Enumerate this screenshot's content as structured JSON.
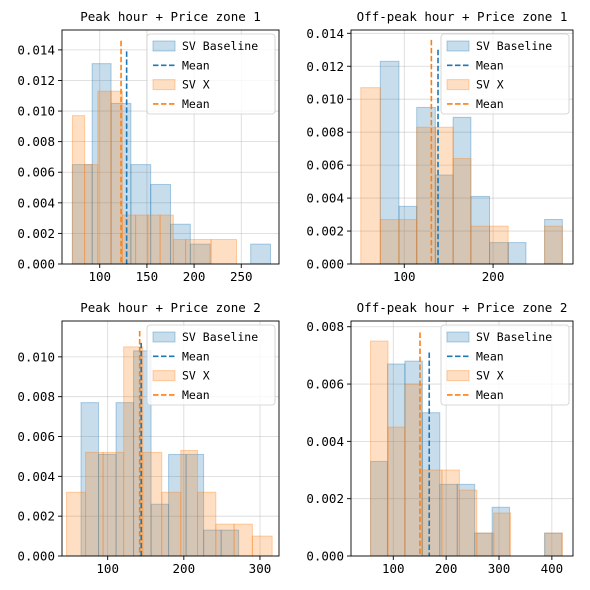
{
  "colors": {
    "baseline": "#1f77b4",
    "x": "#ff7f0e",
    "baseline_fill": "#1f77b4",
    "x_fill": "#ff7f0e"
  },
  "legend_labels": [
    "SV Baseline",
    "Mean",
    "SV X",
    "Mean"
  ],
  "chart_data": [
    {
      "type": "histogram",
      "title": "Peak hour + Price zone 1",
      "xlim": [
        60,
        290
      ],
      "ylim": [
        0,
        0.0153
      ],
      "xticks": [
        100,
        150,
        200,
        250
      ],
      "yticks": [
        0,
        0.002,
        0.004,
        0.006,
        0.008,
        0.01,
        0.012,
        0.014
      ],
      "ytick_labels": [
        "0.000",
        "0.002",
        "0.004",
        "0.006",
        "0.008",
        "0.010",
        "0.012",
        "0.014"
      ],
      "grid": true,
      "legend_position": "top-right",
      "series": [
        {
          "name": "SV Baseline",
          "bin_edges": [
            71,
            92,
            112,
            133,
            154,
            175,
            196,
            217,
            238,
            260,
            281
          ],
          "values": [
            0.0065,
            0.0131,
            0.0105,
            0.0065,
            0.0052,
            0.0026,
            0.0013,
            0,
            0,
            0.0013
          ]
        },
        {
          "name": "SV X",
          "bin_edges": [
            71,
            84,
            98,
            112,
            124,
            138,
            151,
            164,
            178,
            191,
            218,
            245
          ],
          "values": [
            0.0097,
            0.0065,
            0.0113,
            0.0113,
            0.0032,
            0.0032,
            0.0032,
            0.0032,
            0.0016,
            0.0016,
            0.0016
          ]
        }
      ],
      "means": {
        "SV Baseline": 128.5,
        "SV X": 122.6
      },
      "mean_line_tops": {
        "SV Baseline": 0.0139,
        "SV X": 0.0146
      }
    },
    {
      "type": "histogram",
      "title": "Off-peak hour + Price zone 1",
      "xlim": [
        40,
        290
      ],
      "ylim": [
        0,
        0.0142
      ],
      "xticks": [
        100,
        200
      ],
      "yticks": [
        0,
        0.002,
        0.004,
        0.006,
        0.008,
        0.01,
        0.012,
        0.014
      ],
      "ytick_labels": [
        "0.000",
        "0.002",
        "0.004",
        "0.006",
        "0.008",
        "0.010",
        "0.012",
        "0.014"
      ],
      "grid": true,
      "legend_position": "top-right",
      "series": [
        {
          "name": "SV Baseline",
          "bin_edges": [
            73,
            94,
            114,
            135,
            155,
            175,
            196,
            217,
            237,
            258,
            278
          ],
          "values": [
            0.0123,
            0.0035,
            0.0095,
            0.0054,
            0.0089,
            0.0041,
            0.0013,
            0.0013,
            0,
            0.0027
          ]
        },
        {
          "name": "SV X",
          "bin_edges": [
            51,
            73,
            94,
            114,
            135,
            155,
            175,
            196,
            217,
            237,
            258,
            278
          ],
          "values": [
            0.0107,
            0.0027,
            0.0027,
            0.0083,
            0.0083,
            0.0064,
            0.0023,
            0.0023,
            0,
            0,
            0.0023
          ]
        }
      ],
      "means": {
        "SV Baseline": 138.0,
        "SV X": 130.5
      },
      "mean_line_tops": {
        "SV Baseline": 0.013,
        "SV X": 0.0136
      }
    },
    {
      "type": "histogram",
      "title": "Peak hour + Price zone 2",
      "xlim": [
        40,
        325
      ],
      "ylim": [
        0,
        0.0118
      ],
      "xticks": [
        100,
        200,
        300
      ],
      "yticks": [
        0,
        0.002,
        0.004,
        0.006,
        0.008,
        0.01
      ],
      "ytick_labels": [
        "0.000",
        "0.002",
        "0.004",
        "0.006",
        "0.008",
        "0.010"
      ],
      "grid": true,
      "legend_position": "top-right",
      "series": [
        {
          "name": "SV Baseline",
          "bin_edges": [
            65,
            88,
            111,
            134,
            157,
            180,
            203,
            226,
            249,
            272
          ],
          "values": [
            0.0077,
            0.0051,
            0.0077,
            0.0103,
            0.0026,
            0.0051,
            0.0051,
            0.0013,
            0.0013
          ]
        },
        {
          "name": "SV X",
          "bin_edges": [
            46,
            71,
            94,
            121,
            146,
            171,
            196,
            218,
            242,
            266,
            290,
            316
          ],
          "values": [
            0.0032,
            0.0052,
            0.0052,
            0.0105,
            0.0052,
            0.0032,
            0.0053,
            0.0032,
            0.0016,
            0.0016,
            0.001
          ]
        }
      ],
      "means": {
        "SV Baseline": 144.0,
        "SV X": 142.0
      },
      "mean_line_tops": {
        "SV Baseline": 0.0107,
        "SV X": 0.0113
      }
    },
    {
      "type": "histogram",
      "title": "Off-peak hour + Price zone 2",
      "xlim": [
        20,
        440
      ],
      "ylim": [
        0,
        0.0082
      ],
      "xticks": [
        100,
        200,
        300,
        400
      ],
      "yticks": [
        0,
        0.002,
        0.004,
        0.006,
        0.008
      ],
      "ytick_labels": [
        "0.000",
        "0.002",
        "0.004",
        "0.006",
        "0.008"
      ],
      "grid": true,
      "legend_position": "top-right",
      "series": [
        {
          "name": "SV Baseline",
          "bin_edges": [
            57,
            89,
            122,
            155,
            188,
            221,
            254,
            287,
            320,
            353,
            386,
            419
          ],
          "values": [
            0.0033,
            0.0067,
            0.0068,
            0.005,
            0.0025,
            0.0025,
            0.0008,
            0.0017,
            0,
            0,
            0.0008
          ]
        },
        {
          "name": "SV X",
          "bin_edges": [
            57,
            90,
            122,
            154,
            192,
            225,
            258,
            290,
            322,
            355,
            387,
            420
          ],
          "values": [
            0.0075,
            0.0045,
            0.006,
            0.003,
            0.003,
            0.0023,
            0.0008,
            0.0015,
            0,
            0,
            0.0008
          ]
        }
      ],
      "means": {
        "SV Baseline": 168.0,
        "SV X": 150.5
      },
      "mean_line_tops": {
        "SV Baseline": 0.0071,
        "SV X": 0.0078
      }
    }
  ]
}
